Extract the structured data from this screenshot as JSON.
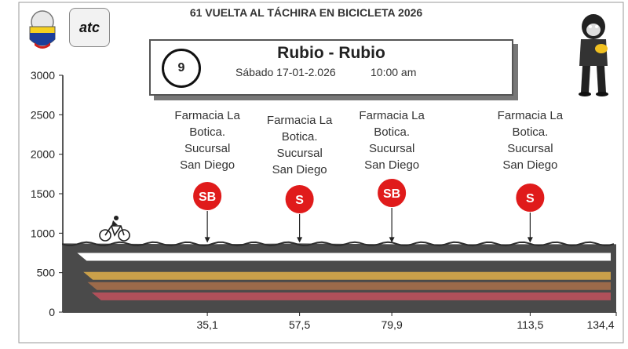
{
  "header": {
    "race_title": "61 VUELTA AL TÁCHIRA EN BICICLETA 2026",
    "logo_text": "atc"
  },
  "stage": {
    "number": "9",
    "route": "Rubio - Rubio",
    "date": "Sábado 17-01-2.026",
    "time": "10:00 am"
  },
  "colors": {
    "profile_fill": "#4a4a4a",
    "sprint_badge": "#e01b1b",
    "stripe_white": "#ffffff",
    "stripe_gold": "#caa04a",
    "stripe_brown": "#9c6a4a",
    "stripe_red": "#b0505a"
  },
  "chart_data": {
    "type": "area",
    "title": "",
    "xlabel": "",
    "ylabel": "",
    "ylim": [
      0,
      3000
    ],
    "yticks": [
      "3000",
      "2500",
      "2000",
      "1500",
      "1000",
      "500",
      "0"
    ],
    "x": [
      0,
      35.1,
      57.5,
      79.9,
      113.5,
      134.4
    ],
    "xtick_labels": [
      "35,1",
      "57,5",
      "79,9",
      "113,5",
      "134,4"
    ],
    "elevation": [
      870,
      860,
      870,
      860,
      860,
      860
    ],
    "grid": false,
    "legend": "none",
    "annotations": [
      {
        "km": 35.1,
        "badge": "SB",
        "lines": [
          "Farmacia La",
          "Botica.",
          "Sucursal",
          "San Diego"
        ]
      },
      {
        "km": 57.5,
        "badge": "S",
        "lines": [
          "Farmacia La",
          "Botica.",
          "Sucursal",
          "San Diego"
        ]
      },
      {
        "km": 79.9,
        "badge": "SB",
        "lines": [
          "Farmacia La",
          "Botica.",
          "Sucursal",
          "San Diego"
        ]
      },
      {
        "km": 113.5,
        "badge": "S",
        "lines": [
          "Farmacia La",
          "Botica.",
          "Sucursal",
          "San Diego"
        ]
      }
    ]
  }
}
